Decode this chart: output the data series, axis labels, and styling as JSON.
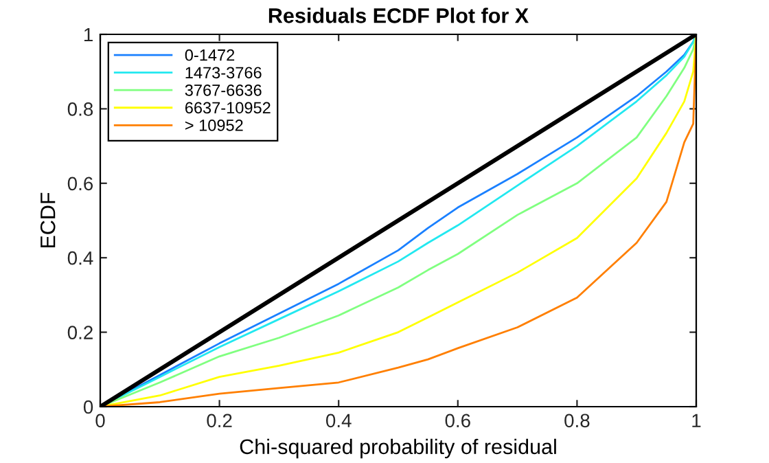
{
  "chart_data": {
    "type": "line",
    "title": "Residuals ECDF Plot for X",
    "xlabel": "Chi-squared probability of residual",
    "ylabel": "ECDF",
    "x": [
      0,
      0.1,
      0.2,
      0.3,
      0.4,
      0.5,
      0.55,
      0.6,
      0.7,
      0.8,
      0.9,
      0.95,
      0.98,
      0.995,
      1
    ],
    "series": [
      {
        "name": "0-1472",
        "color": "#1a80ff",
        "values": [
          0,
          0.085,
          0.17,
          0.25,
          0.33,
          0.42,
          0.48,
          0.535,
          0.625,
          0.723,
          0.834,
          0.9,
          0.945,
          0.98,
          1
        ]
      },
      {
        "name": "1473-3766",
        "color": "#22e8f0",
        "values": [
          0,
          0.08,
          0.16,
          0.235,
          0.31,
          0.39,
          0.44,
          0.487,
          0.594,
          0.7,
          0.82,
          0.89,
          0.94,
          0.98,
          1
        ]
      },
      {
        "name": "3767-6636",
        "color": "#80ff80",
        "values": [
          0,
          0.065,
          0.135,
          0.185,
          0.245,
          0.32,
          0.367,
          0.41,
          0.515,
          0.6,
          0.723,
          0.834,
          0.91,
          0.96,
          1
        ]
      },
      {
        "name": "6637-10952",
        "color": "#ffff00",
        "values": [
          0,
          0.03,
          0.08,
          0.11,
          0.145,
          0.2,
          0.24,
          0.28,
          0.36,
          0.453,
          0.613,
          0.735,
          0.82,
          0.9,
          1
        ]
      },
      {
        "name": "> 10952",
        "color": "#ff7f00",
        "values": [
          0,
          0.012,
          0.035,
          0.05,
          0.065,
          0.105,
          0.127,
          0.157,
          0.213,
          0.293,
          0.44,
          0.55,
          0.71,
          0.76,
          1
        ]
      },
      {
        "color": "#000000",
        "x": [
          0,
          1
        ],
        "values": [
          0,
          1
        ]
      }
    ],
    "xlim": [
      0,
      1
    ],
    "ylim": [
      0,
      1
    ],
    "xticks": [
      0,
      {
        "value": 0.2,
        "label": "0.2"
      },
      {
        "value": 0.4,
        "label": "0.4"
      },
      {
        "value": 0.6,
        "label": "0.6"
      },
      {
        "value": 0.8,
        "label": "0.8"
      },
      1
    ],
    "yticks": [
      0,
      {
        "value": 0.2,
        "label": "0.2"
      },
      {
        "value": 0.4,
        "label": "0.4"
      },
      {
        "value": 0.6,
        "label": "0.6"
      },
      {
        "value": 0.8,
        "label": "0.8"
      },
      1
    ],
    "legend": "top left",
    "grid": false
  }
}
